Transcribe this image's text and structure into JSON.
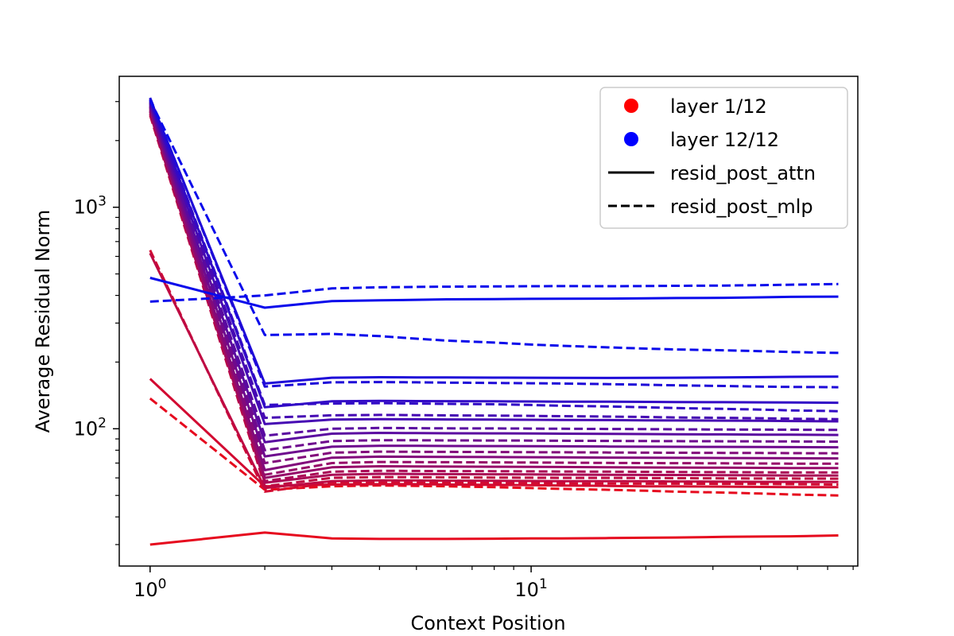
{
  "chart_data": {
    "type": "line",
    "title": "",
    "xlabel": "Context Position",
    "ylabel": "Average Residual Norm",
    "xscale": "log",
    "yscale": "log",
    "xlim": [
      0.83,
      72
    ],
    "ylim": [
      24,
      3900
    ],
    "x_ticks": [
      {
        "value": 1,
        "base": "10",
        "exp": "0"
      },
      {
        "value": 10,
        "base": "10",
        "exp": "1"
      }
    ],
    "y_ticks": [
      {
        "value": 100,
        "base": "10",
        "exp": "2"
      },
      {
        "value": 1000,
        "base": "10",
        "exp": "3"
      }
    ],
    "grid": false,
    "legend": {
      "position": "top-right",
      "entries": [
        {
          "label": "layer 1/12",
          "kind": "marker",
          "color": "#ff0000"
        },
        {
          "label": "layer 12/12",
          "kind": "marker",
          "color": "#0000ff"
        },
        {
          "label": "resid_post_attn",
          "kind": "solid",
          "color": "#000000"
        },
        {
          "label": "resid_post_mlp",
          "kind": "dashed",
          "color": "#000000"
        }
      ]
    },
    "x": [
      1,
      2,
      3,
      4,
      5,
      6,
      8,
      10,
      12,
      16,
      20,
      24,
      32,
      40,
      48,
      64
    ],
    "series": [
      {
        "layer": 1,
        "kind": "attn",
        "y": [
          30,
          34,
          32,
          31.8,
          31.8,
          31.8,
          31.9,
          32,
          32,
          32.1,
          32.2,
          32.3,
          32.5,
          32.6,
          32.7,
          33
        ]
      },
      {
        "layer": 1,
        "kind": "mlp",
        "y": [
          137,
          53,
          55,
          55.5,
          55.2,
          55,
          54.5,
          54,
          53.5,
          53,
          52.5,
          52,
          51.5,
          51,
          50.5,
          50
        ]
      },
      {
        "layer": 2,
        "kind": "attn",
        "y": [
          168,
          55,
          56,
          56.2,
          56.2,
          56,
          55.8,
          55.6,
          55.4,
          55.2,
          55,
          55,
          54.8,
          54.6,
          54.5,
          54.5
        ]
      },
      {
        "layer": 2,
        "kind": "mlp",
        "y": [
          640,
          52,
          57,
          57.3,
          57.2,
          57,
          56.9,
          56.8,
          56.7,
          56.6,
          56.5,
          56.5,
          56.4,
          56.3,
          56.2,
          56
        ]
      },
      {
        "layer": 3,
        "kind": "attn",
        "y": [
          620,
          54,
          58,
          58.5,
          58.4,
          58.3,
          58.2,
          58.1,
          58,
          58,
          57.9,
          57.8,
          57.7,
          57.6,
          57.6,
          57.5
        ]
      },
      {
        "layer": 3,
        "kind": "mlp",
        "y": [
          2600,
          55,
          60,
          60.5,
          60.4,
          60.3,
          60.2,
          60.1,
          60,
          60,
          59.9,
          59.8,
          59.7,
          59.6,
          59.6,
          59.5
        ]
      },
      {
        "layer": 4,
        "kind": "attn",
        "y": [
          2650,
          57,
          62,
          62.6,
          62.5,
          62.4,
          62.3,
          62.2,
          62.1,
          62,
          61.9,
          61.8,
          61.7,
          61.6,
          61.5,
          61.5
        ]
      },
      {
        "layer": 4,
        "kind": "mlp",
        "y": [
          2700,
          58,
          64,
          64.6,
          64.5,
          64.4,
          64.3,
          64.2,
          64.1,
          64,
          63.9,
          63.8,
          63.7,
          63.6,
          63.5,
          63.5
        ]
      },
      {
        "layer": 5,
        "kind": "attn",
        "y": [
          2720,
          60,
          67,
          67.7,
          67.6,
          67.5,
          67.4,
          67.3,
          67.2,
          67,
          66.9,
          66.8,
          66.7,
          66.6,
          66.5,
          66.5
        ]
      },
      {
        "layer": 5,
        "kind": "mlp",
        "y": [
          2760,
          62,
          70,
          70.8,
          70.7,
          70.6,
          70.5,
          70.4,
          70.3,
          70.1,
          70,
          69.9,
          69.8,
          69.7,
          69.6,
          69.5
        ]
      },
      {
        "layer": 6,
        "kind": "attn",
        "y": [
          2800,
          65,
          74,
          74.8,
          74.7,
          74.6,
          74.5,
          74.4,
          74.3,
          74.1,
          74,
          73.9,
          73.8,
          73.7,
          73.6,
          73.5
        ]
      },
      {
        "layer": 6,
        "kind": "mlp",
        "y": [
          2830,
          70,
          78,
          78.8,
          78.7,
          78.6,
          78.5,
          78.4,
          78.3,
          78.1,
          78,
          77.9,
          77.8,
          77.7,
          77.6,
          77.5
        ]
      },
      {
        "layer": 7,
        "kind": "attn",
        "y": [
          2860,
          75,
          83,
          83.8,
          83.7,
          83.6,
          83.5,
          83.4,
          83.3,
          83.1,
          83,
          82.9,
          82.8,
          82.7,
          82.6,
          82.5
        ]
      },
      {
        "layer": 7,
        "kind": "mlp",
        "y": [
          2890,
          80,
          88,
          88.8,
          88.7,
          88.6,
          88.5,
          88.4,
          88.3,
          88.1,
          88,
          87.9,
          87.8,
          87.7,
          87.6,
          87.5
        ]
      },
      {
        "layer": 8,
        "kind": "attn",
        "y": [
          2920,
          87,
          95,
          95.8,
          95.6,
          95.4,
          95.3,
          95.2,
          95,
          94.8,
          94.6,
          94.5,
          94.3,
          94.1,
          94,
          93.8
        ]
      },
      {
        "layer": 8,
        "kind": "mlp",
        "y": [
          2950,
          93,
          100,
          100.8,
          100.6,
          100.4,
          100.3,
          100.2,
          100,
          99.8,
          99.6,
          99.4,
          99.2,
          99.1,
          99,
          98.8
        ]
      },
      {
        "layer": 9,
        "kind": "attn",
        "y": [
          2980,
          105,
          110,
          110.5,
          110.3,
          110.2,
          110,
          109.8,
          109.6,
          109.4,
          109.2,
          109,
          108.8,
          108.6,
          108.4,
          108
        ]
      },
      {
        "layer": 9,
        "kind": "mlp",
        "y": [
          3000,
          112,
          115,
          115.5,
          115.2,
          114.9,
          114.6,
          114.3,
          114,
          113.5,
          113,
          112.5,
          112,
          111.5,
          111,
          110.5
        ]
      },
      {
        "layer": 10,
        "kind": "attn",
        "y": [
          3030,
          125,
          133,
          133.5,
          133.3,
          133.2,
          133,
          132.8,
          132.6,
          132.4,
          132.2,
          132,
          131.8,
          131.6,
          131.4,
          131
        ]
      },
      {
        "layer": 10,
        "kind": "mlp",
        "y": [
          3060,
          128,
          130,
          130.5,
          130,
          129.5,
          129,
          128,
          127,
          126,
          125,
          124,
          123,
          122,
          121,
          120
        ]
      },
      {
        "layer": 11,
        "kind": "attn",
        "y": [
          3090,
          160,
          170,
          170.8,
          170.6,
          170.4,
          170.2,
          170,
          169.8,
          169.6,
          169.8,
          170,
          170.5,
          171,
          171.5,
          172
        ]
      },
      {
        "layer": 11,
        "kind": "mlp",
        "y": [
          3120,
          155,
          162,
          162.5,
          162,
          161.5,
          161,
          160.5,
          160,
          159,
          158,
          157,
          156,
          155,
          154.5,
          154
        ]
      },
      {
        "layer": 12,
        "kind": "attn",
        "y": [
          480,
          352,
          377,
          380,
          382,
          384,
          385,
          386,
          386.5,
          387,
          388,
          389,
          390,
          392,
          394,
          395
        ]
      },
      {
        "layer": 12,
        "kind": "mlp",
        "y": [
          375,
          400,
          430,
          435,
          437,
          438,
          439,
          440,
          440.5,
          440,
          441,
          442,
          443,
          445,
          447,
          450
        ]
      },
      {
        "layer": 12,
        "kind": "mlp",
        "y": [
          3050,
          265,
          268,
          262,
          255,
          250,
          245,
          240,
          237,
          233,
          230,
          228,
          226,
          224,
          222,
          220
        ]
      }
    ]
  }
}
